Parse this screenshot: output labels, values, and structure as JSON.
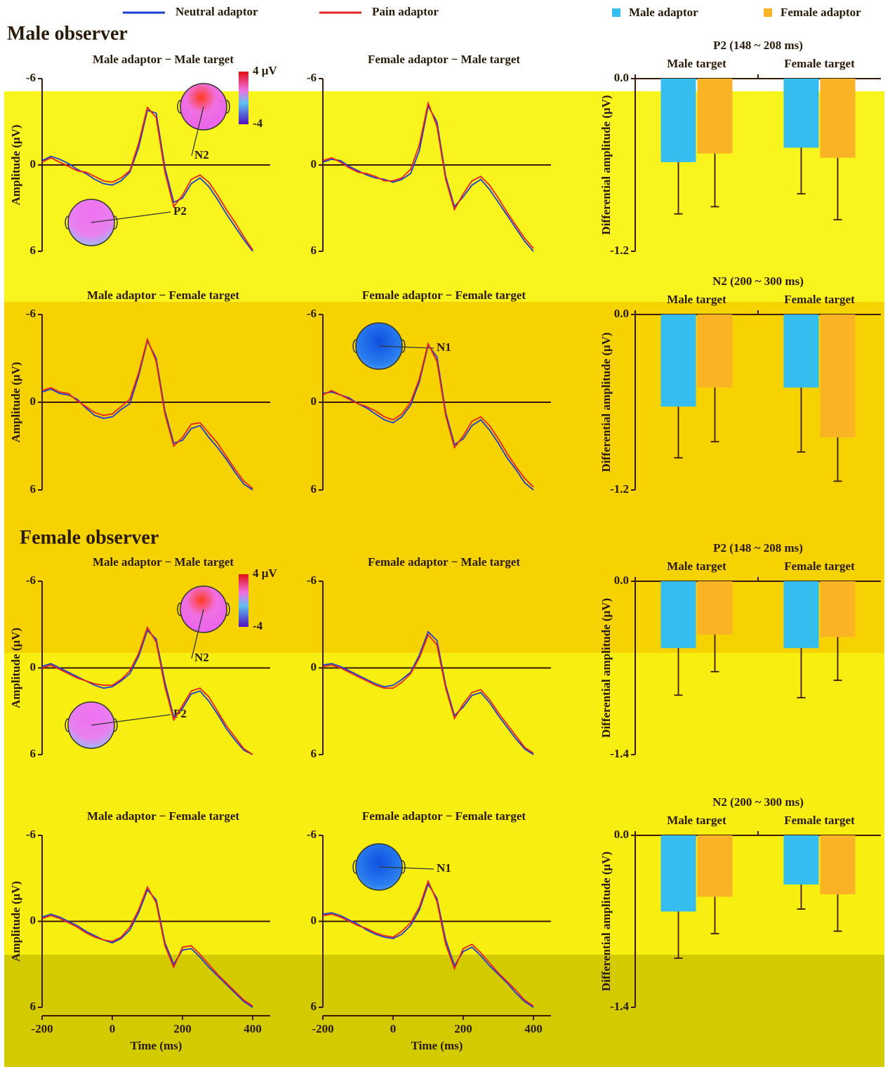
{
  "headings": [
    "Male observer",
    "Female observer"
  ],
  "chart_data": [
    {
      "type": "line",
      "title": "Male adaptor − Male target",
      "ylabel": "Amplitude (μV)",
      "annotations": [
        "N2",
        "P2"
      ],
      "colorbar": [
        "4 μV",
        "-4"
      ],
      "x": [
        -200,
        -175,
        -150,
        -125,
        -100,
        -75,
        -50,
        -25,
        0,
        25,
        50,
        75,
        100,
        125,
        150,
        175,
        200,
        225,
        250,
        275,
        300,
        325,
        350,
        375,
        400
      ],
      "xlim": [
        -200,
        450
      ],
      "ylim": [
        -6,
        6
      ],
      "y_inverted": true,
      "yticks": [
        -6,
        0,
        6
      ],
      "series": [
        {
          "name": "Neutral adaptor",
          "color": "#1a3ccf",
          "values": [
            -0.3,
            -0.6,
            -0.4,
            -0.1,
            0.3,
            0.6,
            1.0,
            1.3,
            1.4,
            1.1,
            0.5,
            -1.2,
            -3.8,
            -3.6,
            0.2,
            2.6,
            2.3,
            1.3,
            0.9,
            1.5,
            2.4,
            3.4,
            4.3,
            5.2,
            6.0
          ]
        },
        {
          "name": "Pain adaptor",
          "color": "#e8211d",
          "values": [
            -0.2,
            -0.5,
            -0.2,
            0.1,
            0.4,
            0.5,
            0.8,
            1.1,
            1.2,
            0.9,
            0.4,
            -1.5,
            -4.0,
            -3.3,
            0.5,
            2.9,
            2.1,
            1.0,
            0.7,
            1.2,
            2.1,
            3.1,
            4.0,
            5.0,
            5.9
          ]
        }
      ]
    },
    {
      "type": "line",
      "title": "Female adaptor − Male target",
      "x": [
        -200,
        -175,
        -150,
        -125,
        -100,
        -75,
        -50,
        -25,
        0,
        25,
        50,
        75,
        100,
        125,
        150,
        175,
        200,
        225,
        250,
        275,
        300,
        325,
        350,
        375,
        400
      ],
      "xlim": [
        -200,
        450
      ],
      "ylim": [
        -6,
        6
      ],
      "y_inverted": true,
      "yticks": [
        -6,
        0,
        6
      ],
      "series": [
        {
          "name": "Neutral adaptor",
          "color": "#1a3ccf",
          "values": [
            -0.2,
            -0.4,
            -0.3,
            0.1,
            0.4,
            0.7,
            0.9,
            1.0,
            1.2,
            1.0,
            0.6,
            -1.0,
            -4.1,
            -3.0,
            0.8,
            2.9,
            2.2,
            1.4,
            1.0,
            1.7,
            2.6,
            3.5,
            4.4,
            5.3,
            6.0
          ]
        },
        {
          "name": "Pain adaptor",
          "color": "#e8211d",
          "values": [
            -0.3,
            -0.5,
            -0.2,
            0.2,
            0.5,
            0.6,
            0.8,
            1.1,
            1.1,
            0.9,
            0.3,
            -1.4,
            -4.3,
            -2.7,
            1.0,
            3.1,
            2.0,
            1.1,
            0.8,
            1.4,
            2.3,
            3.3,
            4.2,
            5.1,
            5.8
          ]
        }
      ]
    },
    {
      "type": "bar",
      "title": "P2 (148 ~ 208 ms)",
      "ylabel": "Differential amplitude (μV)",
      "categories": [
        "Male target",
        "Female target"
      ],
      "ylim": [
        -1.2,
        0
      ],
      "yticks": [
        {
          "value": 0,
          "label": "0.0"
        },
        -1.2
      ],
      "series": [
        {
          "name": "Male adaptor",
          "color": "#35bdf0",
          "values": [
            -0.58,
            -0.48
          ],
          "errors": [
            0.36,
            0.32
          ]
        },
        {
          "name": "Female adaptor",
          "color": "#f9b324",
          "values": [
            -0.52,
            -0.55
          ],
          "errors": [
            0.37,
            0.43
          ]
        }
      ]
    },
    {
      "type": "line",
      "title": "Male adaptor − Female target",
      "ylabel": "Amplitude (μV)",
      "x": [
        -200,
        -175,
        -150,
        -125,
        -100,
        -75,
        -50,
        -25,
        0,
        25,
        50,
        75,
        100,
        125,
        150,
        175,
        200,
        225,
        250,
        275,
        300,
        325,
        350,
        375,
        400
      ],
      "xlim": [
        -200,
        450
      ],
      "ylim": [
        -6,
        6
      ],
      "y_inverted": true,
      "yticks": [
        -6,
        0,
        6
      ],
      "series": [
        {
          "name": "Neutral adaptor",
          "color": "#1a3ccf",
          "values": [
            -0.7,
            -0.9,
            -0.6,
            -0.5,
            -0.2,
            0.4,
            0.9,
            1.1,
            1.0,
            0.5,
            0.1,
            -1.8,
            -4.2,
            -3.0,
            0.6,
            2.8,
            2.6,
            1.8,
            1.6,
            2.4,
            3.1,
            3.9,
            4.8,
            5.6,
            6.0
          ]
        },
        {
          "name": "Pain adaptor",
          "color": "#e8211d",
          "values": [
            -0.8,
            -1.0,
            -0.7,
            -0.6,
            -0.1,
            0.3,
            0.7,
            0.9,
            0.8,
            0.3,
            -0.2,
            -2.0,
            -4.3,
            -2.8,
            0.8,
            3.0,
            2.4,
            1.5,
            1.4,
            2.1,
            2.8,
            3.7,
            4.6,
            5.4,
            5.9
          ]
        }
      ]
    },
    {
      "type": "line",
      "title": "Female adaptor − Female target",
      "annotations": [
        "N1"
      ],
      "x": [
        -200,
        -175,
        -150,
        -125,
        -100,
        -75,
        -50,
        -25,
        0,
        25,
        50,
        75,
        100,
        125,
        150,
        175,
        200,
        225,
        250,
        275,
        300,
        325,
        350,
        375,
        400
      ],
      "xlim": [
        -200,
        450
      ],
      "ylim": [
        -6,
        6
      ],
      "y_inverted": true,
      "yticks": [
        -6,
        0,
        6
      ],
      "series": [
        {
          "name": "Neutral adaptor",
          "color": "#1a3ccf",
          "values": [
            -0.6,
            -0.7,
            -0.5,
            -0.3,
            0.1,
            0.4,
            0.8,
            1.2,
            1.4,
            1.0,
            0.2,
            -1.4,
            -3.9,
            -3.1,
            0.7,
            2.9,
            2.5,
            1.6,
            1.2,
            1.9,
            2.8,
            3.8,
            4.6,
            5.5,
            6.0
          ]
        },
        {
          "name": "Pain adaptor",
          "color": "#e8211d",
          "values": [
            -0.5,
            -0.8,
            -0.5,
            -0.2,
            0.1,
            0.3,
            0.6,
            1.0,
            1.2,
            0.8,
            0.0,
            -1.6,
            -4.0,
            -2.8,
            0.9,
            3.1,
            2.3,
            1.3,
            1.0,
            1.6,
            2.5,
            3.5,
            4.4,
            5.2,
            5.8
          ]
        }
      ]
    },
    {
      "type": "bar",
      "title": "N2 (200 ~ 300 ms)",
      "ylabel": "Differential amplitude (μV)",
      "categories": [
        "Male target",
        "Female target"
      ],
      "ylim": [
        -1.2,
        0
      ],
      "yticks": [
        {
          "value": 0,
          "label": "0.0"
        },
        -1.2
      ],
      "series": [
        {
          "name": "Male adaptor",
          "color": "#35bdf0",
          "values": [
            -0.63,
            -0.5
          ],
          "errors": [
            0.35,
            0.44
          ]
        },
        {
          "name": "Female adaptor",
          "color": "#f9b324",
          "values": [
            -0.5,
            -0.84
          ],
          "errors": [
            0.37,
            0.3
          ]
        }
      ]
    },
    {
      "type": "line",
      "title": "Male adaptor − Male target",
      "ylabel": "Amplitude (μV)",
      "annotations": [
        "N2",
        "P2"
      ],
      "colorbar": [
        "4 μV",
        "-4"
      ],
      "x": [
        -200,
        -175,
        -150,
        -125,
        -100,
        -75,
        -50,
        -25,
        0,
        25,
        50,
        75,
        100,
        125,
        150,
        175,
        200,
        225,
        250,
        275,
        300,
        325,
        350,
        375,
        400
      ],
      "xlim": [
        -200,
        450
      ],
      "ylim": [
        -6,
        6
      ],
      "y_inverted": true,
      "yticks": [
        -6,
        0,
        6
      ],
      "series": [
        {
          "name": "Neutral adaptor",
          "color": "#1a3ccf",
          "values": [
            -0.1,
            -0.3,
            0.0,
            0.3,
            0.6,
            0.9,
            1.2,
            1.4,
            1.3,
            0.9,
            0.4,
            -0.8,
            -2.6,
            -2.0,
            1.0,
            3.4,
            2.8,
            1.8,
            1.6,
            2.3,
            3.2,
            4.2,
            5.0,
            5.7,
            6.0
          ]
        },
        {
          "name": "Pain adaptor",
          "color": "#e8211d",
          "values": [
            0.0,
            -0.2,
            0.1,
            0.4,
            0.7,
            0.9,
            1.1,
            1.2,
            1.2,
            0.8,
            0.2,
            -1.0,
            -2.8,
            -1.8,
            1.3,
            3.6,
            2.6,
            1.6,
            1.4,
            2.0,
            3.0,
            4.0,
            4.8,
            5.6,
            6.0
          ]
        }
      ]
    },
    {
      "type": "line",
      "title": "Female adaptor − Male target",
      "x": [
        -200,
        -175,
        -150,
        -125,
        -100,
        -75,
        -50,
        -25,
        0,
        25,
        50,
        75,
        100,
        125,
        150,
        175,
        200,
        225,
        250,
        275,
        300,
        325,
        350,
        375,
        400
      ],
      "xlim": [
        -200,
        450
      ],
      "ylim": [
        -6,
        6
      ],
      "y_inverted": true,
      "yticks": [
        -6,
        0,
        6
      ],
      "series": [
        {
          "name": "Neutral adaptor",
          "color": "#1a3ccf",
          "values": [
            -0.2,
            -0.3,
            -0.1,
            0.2,
            0.5,
            0.8,
            1.1,
            1.3,
            1.2,
            0.8,
            0.3,
            -0.9,
            -2.5,
            -1.9,
            1.2,
            3.3,
            2.7,
            1.9,
            1.7,
            2.4,
            3.3,
            4.1,
            4.9,
            5.6,
            6.0
          ]
        },
        {
          "name": "Pain adaptor",
          "color": "#e8211d",
          "values": [
            -0.1,
            -0.2,
            0.0,
            0.3,
            0.6,
            0.9,
            1.2,
            1.4,
            1.4,
            1.0,
            0.4,
            -0.7,
            -2.3,
            -1.6,
            1.4,
            3.5,
            2.5,
            1.7,
            1.5,
            2.2,
            3.1,
            3.9,
            4.7,
            5.5,
            5.9
          ]
        }
      ]
    },
    {
      "type": "bar",
      "title": "P2 (148 ~ 208 ms)",
      "ylabel": "Differential amplitude (μV)",
      "categories": [
        "Male target",
        "Female target"
      ],
      "ylim": [
        -1.4,
        0
      ],
      "yticks": [
        {
          "value": 0,
          "label": "0.0"
        },
        -1.4
      ],
      "series": [
        {
          "name": "Male adaptor",
          "color": "#35bdf0",
          "values": [
            -0.54,
            -0.54
          ],
          "errors": [
            0.38,
            0.4
          ]
        },
        {
          "name": "Female adaptor",
          "color": "#f9b324",
          "values": [
            -0.43,
            -0.45
          ],
          "errors": [
            0.3,
            0.35
          ]
        }
      ]
    },
    {
      "type": "line",
      "title": "Male adaptor − Female target",
      "ylabel": "Amplitude (μV)",
      "xlabel": "Time (ms)",
      "x": [
        -200,
        -175,
        -150,
        -125,
        -100,
        -75,
        -50,
        -25,
        0,
        25,
        50,
        75,
        100,
        125,
        150,
        175,
        200,
        225,
        250,
        275,
        300,
        325,
        350,
        375,
        400
      ],
      "xlim": [
        -200,
        450
      ],
      "xticks": [
        -200,
        0,
        200,
        400
      ],
      "ylim": [
        -6,
        6
      ],
      "y_inverted": true,
      "yticks": [
        -6,
        0,
        6
      ],
      "series": [
        {
          "name": "Neutral adaptor",
          "color": "#1a3ccf",
          "values": [
            -0.3,
            -0.5,
            -0.3,
            0.0,
            0.3,
            0.7,
            1.0,
            1.3,
            1.5,
            1.2,
            0.6,
            -0.6,
            -2.2,
            -1.5,
            1.5,
            3.0,
            2.0,
            1.9,
            2.5,
            3.2,
            3.8,
            4.4,
            5.0,
            5.6,
            6.0
          ]
        },
        {
          "name": "Pain adaptor",
          "color": "#e8211d",
          "values": [
            -0.2,
            -0.4,
            -0.2,
            0.1,
            0.4,
            0.8,
            1.1,
            1.3,
            1.4,
            1.1,
            0.4,
            -0.8,
            -2.4,
            -1.3,
            1.7,
            3.2,
            1.8,
            1.7,
            2.3,
            3.0,
            3.7,
            4.3,
            4.9,
            5.5,
            5.9
          ]
        }
      ]
    },
    {
      "type": "line",
      "title": "Female adaptor − Female target",
      "xlabel": "Time (ms)",
      "annotations": [
        "N1"
      ],
      "x": [
        -200,
        -175,
        -150,
        -125,
        -100,
        -75,
        -50,
        -25,
        0,
        25,
        50,
        75,
        100,
        125,
        150,
        175,
        200,
        225,
        250,
        275,
        300,
        325,
        350,
        375,
        400
      ],
      "xlim": [
        -200,
        450
      ],
      "xticks": [
        -200,
        0,
        200,
        400
      ],
      "ylim": [
        -6,
        6
      ],
      "y_inverted": true,
      "yticks": [
        -6,
        0,
        6
      ],
      "series": [
        {
          "name": "Neutral adaptor",
          "color": "#1a3ccf",
          "values": [
            -0.5,
            -0.6,
            -0.4,
            -0.1,
            0.2,
            0.6,
            0.9,
            1.1,
            1.2,
            0.9,
            0.3,
            -0.8,
            -2.6,
            -1.6,
            1.3,
            3.1,
            2.1,
            1.8,
            2.4,
            3.1,
            3.7,
            4.3,
            5.0,
            5.6,
            6.0
          ]
        },
        {
          "name": "Pain adaptor",
          "color": "#e8211d",
          "values": [
            -0.4,
            -0.5,
            -0.3,
            0.0,
            0.3,
            0.5,
            0.8,
            1.0,
            1.1,
            0.7,
            0.1,
            -1.0,
            -2.8,
            -1.4,
            1.6,
            3.3,
            1.9,
            1.6,
            2.2,
            2.9,
            3.6,
            4.2,
            4.8,
            5.5,
            5.9
          ]
        }
      ]
    },
    {
      "type": "bar",
      "title": "N2 (200 ~ 300 ms)",
      "ylabel": "Differential amplitude (μV)",
      "categories": [
        "Male target",
        "Female target"
      ],
      "ylim": [
        -1.4,
        0
      ],
      "yticks": [
        {
          "value": 0,
          "label": "0.0"
        },
        -1.4
      ],
      "series": [
        {
          "name": "Male adaptor",
          "color": "#35bdf0",
          "values": [
            -0.62,
            -0.4
          ],
          "errors": [
            0.38,
            0.2
          ]
        },
        {
          "name": "Female adaptor",
          "color": "#f9b324",
          "values": [
            -0.5,
            -0.48
          ],
          "errors": [
            0.3,
            0.3
          ]
        }
      ]
    }
  ]
}
